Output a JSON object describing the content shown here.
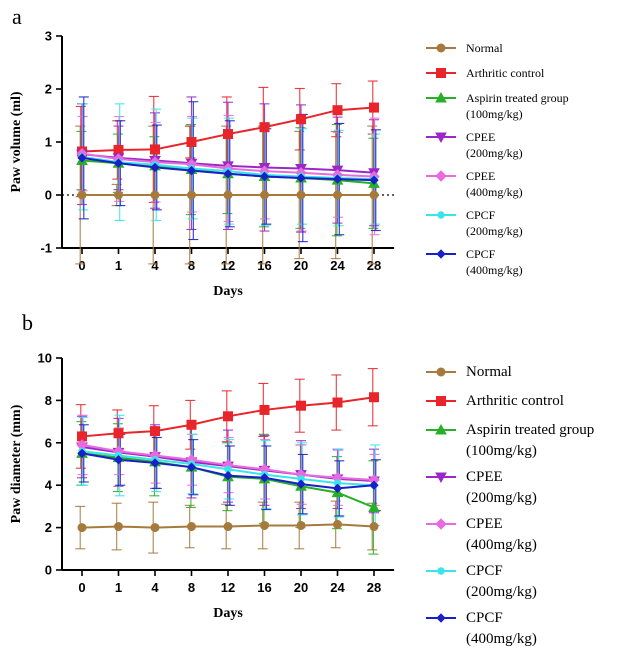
{
  "chart_data": [
    {
      "panel": "a",
      "type": "line",
      "xlabel": "Days",
      "ylabel": "Paw volume (ml)",
      "categories": [
        "0",
        "1",
        "4",
        "8",
        "12",
        "16",
        "20",
        "24",
        "28"
      ],
      "ylim": [
        -1,
        3
      ],
      "yticks": [
        "-1",
        "0",
        "1",
        "2",
        "3"
      ],
      "reference_line": 0,
      "legend_position": "right",
      "series": [
        {
          "name": [
            "Normal"
          ],
          "color": "#a57a3c",
          "marker": "circle",
          "values": [
            0,
            0,
            0,
            0,
            0,
            0,
            0,
            0,
            0
          ],
          "errors": [
            1.3,
            0.2,
            1.3,
            1.3,
            1.3,
            1.3,
            1.2,
            1.2,
            1.3
          ]
        },
        {
          "name": [
            "Arthritic control"
          ],
          "color": "#e8252a",
          "marker": "square",
          "values": [
            0.82,
            0.85,
            0.86,
            1.0,
            1.15,
            1.28,
            1.43,
            1.6,
            1.65
          ],
          "errors": [
            0.85,
            0.55,
            1.0,
            0.3,
            0.7,
            0.75,
            0.58,
            0.5,
            0.5
          ]
        },
        {
          "name": [
            "Aspirin treated group",
            "(100mg/kg)"
          ],
          "color": "#27b027",
          "marker": "triangle",
          "values": [
            0.65,
            0.6,
            0.55,
            0.48,
            0.4,
            0.35,
            0.32,
            0.28,
            0.22
          ],
          "errors": [
            0.55,
            0.55,
            0.55,
            0.85,
            0.75,
            0.95,
            0.95,
            1.05,
            0.85
          ]
        },
        {
          "name": [
            "CPEE",
            "(200mg/kg)"
          ],
          "color": "#9b27c8",
          "marker": "triangle-down",
          "values": [
            0.77,
            0.7,
            0.65,
            0.6,
            0.55,
            0.52,
            0.5,
            0.47,
            0.42
          ],
          "errors": [
            0.95,
            0.6,
            0.9,
            1.25,
            1.2,
            1.2,
            1.2,
            1.0,
            1.0
          ]
        },
        {
          "name": [
            "CPEE",
            "(400mg/kg)"
          ],
          "color": "#e86ae0",
          "marker": "diamond",
          "values": [
            0.78,
            0.68,
            0.62,
            0.58,
            0.5,
            0.45,
            0.42,
            0.38,
            0.35
          ],
          "errors": [
            0.7,
            0.8,
            0.75,
            0.9,
            1.0,
            0.9,
            1.1,
            0.8,
            1.1
          ]
        },
        {
          "name": [
            "CPCF",
            "(200mg/kg)"
          ],
          "color": "#38e5ea",
          "marker": "circle-small",
          "values": [
            0.72,
            0.62,
            0.57,
            0.5,
            0.45,
            0.38,
            0.35,
            0.32,
            0.3
          ],
          "errors": [
            1.0,
            1.1,
            1.05,
            0.95,
            1.0,
            0.95,
            0.9,
            0.9,
            0.85
          ]
        },
        {
          "name": [
            "CPCF",
            "(400mg/kg)"
          ],
          "color": "#1a20c8",
          "marker": "diamond-small",
          "values": [
            0.7,
            0.6,
            0.52,
            0.46,
            0.4,
            0.35,
            0.32,
            0.3,
            0.28
          ],
          "errors": [
            1.15,
            0.8,
            0.8,
            1.3,
            1.0,
            0.9,
            1.2,
            1.05,
            0.95
          ]
        }
      ]
    },
    {
      "panel": "b",
      "type": "line",
      "xlabel": "Days",
      "ylabel": "Paw diameter (mm)",
      "categories": [
        "0",
        "1",
        "4",
        "8",
        "12",
        "16",
        "20",
        "24",
        "28"
      ],
      "ylim": [
        0,
        10
      ],
      "yticks": [
        "0",
        "2",
        "4",
        "6",
        "8",
        "10"
      ],
      "legend_position": "right",
      "series": [
        {
          "name": [
            "Normal"
          ],
          "color": "#a57a3c",
          "marker": "circle",
          "values": [
            2.0,
            2.05,
            2.0,
            2.05,
            2.05,
            2.1,
            2.1,
            2.15,
            2.05
          ],
          "errors": [
            1.0,
            1.1,
            1.2,
            1.0,
            1.05,
            1.1,
            1.1,
            1.1,
            1.1
          ]
        },
        {
          "name": [
            "Arthritic control"
          ],
          "color": "#e8252a",
          "marker": "square",
          "values": [
            6.3,
            6.45,
            6.55,
            6.85,
            7.25,
            7.55,
            7.75,
            7.9,
            8.15
          ],
          "errors": [
            1.5,
            1.1,
            1.2,
            1.15,
            1.2,
            1.25,
            1.25,
            1.3,
            1.35
          ]
        },
        {
          "name": [
            "Aspirin treated group",
            "(100mg/kg)"
          ],
          "color": "#27b027",
          "marker": "triangle",
          "values": [
            5.5,
            5.3,
            5.1,
            4.85,
            4.4,
            4.3,
            3.95,
            3.65,
            2.95
          ],
          "errors": [
            1.5,
            1.6,
            1.6,
            1.9,
            1.6,
            2.1,
            1.95,
            1.7,
            2.2
          ]
        },
        {
          "name": [
            "CPEE",
            "(200mg/kg)"
          ],
          "color": "#9b27c8",
          "marker": "triangle-down",
          "values": [
            5.8,
            5.55,
            5.35,
            5.1,
            4.9,
            4.7,
            4.5,
            4.3,
            4.2
          ],
          "errors": [
            1.45,
            1.6,
            1.5,
            1.7,
            1.7,
            1.65,
            1.6,
            1.4,
            1.5
          ]
        },
        {
          "name": [
            "CPEE",
            "(400mg/kg)"
          ],
          "color": "#e86ae0",
          "marker": "diamond",
          "values": [
            5.9,
            5.6,
            5.4,
            5.2,
            4.95,
            4.75,
            4.5,
            4.35,
            4.25
          ],
          "errors": [
            1.4,
            1.1,
            1.3,
            1.2,
            1.3,
            1.4,
            1.4,
            1.3,
            1.2
          ]
        },
        {
          "name": [
            "CPCF",
            "(200mg/kg)"
          ],
          "color": "#38e5ea",
          "marker": "circle-small",
          "values": [
            5.6,
            5.4,
            5.2,
            5.0,
            4.75,
            4.5,
            4.3,
            4.1,
            4.0
          ],
          "errors": [
            1.6,
            1.9,
            1.5,
            1.4,
            1.4,
            1.6,
            1.7,
            1.6,
            1.9
          ]
        },
        {
          "name": [
            "CPCF",
            "(400mg/kg)"
          ],
          "color": "#1a20c8",
          "marker": "diamond-small",
          "values": [
            5.5,
            5.2,
            5.05,
            4.85,
            4.45,
            4.35,
            4.05,
            3.85,
            4.0
          ],
          "errors": [
            1.35,
            1.2,
            1.2,
            1.3,
            1.4,
            1.5,
            1.4,
            1.3,
            1.2
          ]
        }
      ]
    }
  ]
}
